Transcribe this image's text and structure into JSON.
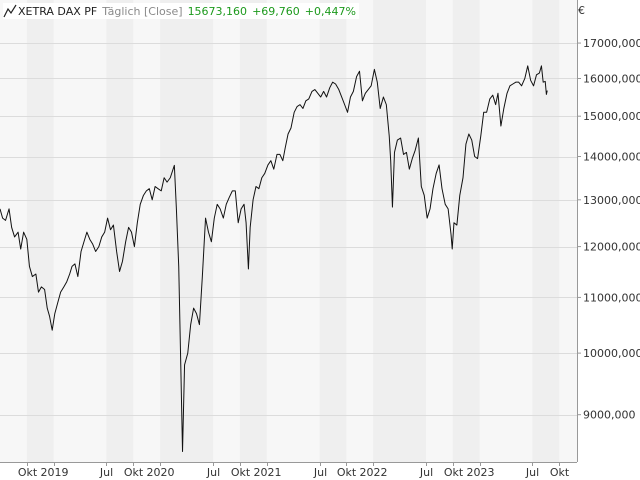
{
  "header": {
    "name": "XETRA DAX PF",
    "mode": "Täglich [Close]",
    "last": "15673,160",
    "change": "+69,760",
    "change_pct": "+0,447%"
  },
  "colors": {
    "positive": "#1d9a1d",
    "line": "#111111",
    "band_dark": "#efefef",
    "band_light": "#f7f7f7",
    "grid": "#dcdcdc"
  },
  "chart_data": {
    "type": "line",
    "currency": "€",
    "yscale": "log",
    "ylim": [
      8300,
      18300
    ],
    "yticks": [
      {
        "v": 9000,
        "label": "9000,000"
      },
      {
        "v": 10000,
        "label": "10000,000"
      },
      {
        "v": 11000,
        "label": "11000,000"
      },
      {
        "v": 12000,
        "label": "12000,000"
      },
      {
        "v": 13000,
        "label": "13000,000"
      },
      {
        "v": 14000,
        "label": "14000,000"
      },
      {
        "v": 15000,
        "label": "15000,000"
      },
      {
        "v": 16000,
        "label": "16000,000"
      },
      {
        "v": 17000,
        "label": "17000,000"
      }
    ],
    "xlim": [
      "2018-07-01",
      "2023-12-01"
    ],
    "xticks": [
      {
        "d": "2018-10-01",
        "label": "Okt"
      },
      {
        "d": "2019-01-01",
        "label": "2019"
      },
      {
        "d": "2019-07-01",
        "label": "Jul"
      },
      {
        "d": "2019-10-01",
        "label": "Okt"
      },
      {
        "d": "2020-01-01",
        "label": "2020"
      },
      {
        "d": "2020-07-01",
        "label": "Jul"
      },
      {
        "d": "2020-10-01",
        "label": "Okt"
      },
      {
        "d": "2021-01-01",
        "label": "2021"
      },
      {
        "d": "2021-07-01",
        "label": "Jul"
      },
      {
        "d": "2021-10-01",
        "label": "Okt"
      },
      {
        "d": "2022-01-01",
        "label": "2022"
      },
      {
        "d": "2022-07-01",
        "label": "Jul"
      },
      {
        "d": "2022-10-01",
        "label": "Okt"
      },
      {
        "d": "2023-01-01",
        "label": "2023"
      },
      {
        "d": "2023-07-01",
        "label": "Jul"
      },
      {
        "d": "2023-10-01",
        "label": "Okt"
      }
    ],
    "series": [
      {
        "points": [
          [
            "2018-07-01",
            12800
          ],
          [
            "2018-07-10",
            12600
          ],
          [
            "2018-07-20",
            12550
          ],
          [
            "2018-08-01",
            12800
          ],
          [
            "2018-08-10",
            12400
          ],
          [
            "2018-08-20",
            12200
          ],
          [
            "2018-09-01",
            12300
          ],
          [
            "2018-09-10",
            11950
          ],
          [
            "2018-09-20",
            12300
          ],
          [
            "2018-10-01",
            12150
          ],
          [
            "2018-10-10",
            11600
          ],
          [
            "2018-10-20",
            11400
          ],
          [
            "2018-11-01",
            11450
          ],
          [
            "2018-11-10",
            11100
          ],
          [
            "2018-11-20",
            11200
          ],
          [
            "2018-12-01",
            11150
          ],
          [
            "2018-12-10",
            10800
          ],
          [
            "2018-12-18",
            10650
          ],
          [
            "2018-12-27",
            10400
          ],
          [
            "2019-01-05",
            10700
          ],
          [
            "2019-01-15",
            10900
          ],
          [
            "2019-01-25",
            11100
          ],
          [
            "2019-02-05",
            11200
          ],
          [
            "2019-02-15",
            11300
          ],
          [
            "2019-02-25",
            11450
          ],
          [
            "2019-03-05",
            11600
          ],
          [
            "2019-03-15",
            11650
          ],
          [
            "2019-03-25",
            11400
          ],
          [
            "2019-04-05",
            11900
          ],
          [
            "2019-04-15",
            12100
          ],
          [
            "2019-04-25",
            12300
          ],
          [
            "2019-05-05",
            12150
          ],
          [
            "2019-05-15",
            12050
          ],
          [
            "2019-05-25",
            11900
          ],
          [
            "2019-06-05",
            12000
          ],
          [
            "2019-06-15",
            12200
          ],
          [
            "2019-06-25",
            12300
          ],
          [
            "2019-07-05",
            12600
          ],
          [
            "2019-07-15",
            12350
          ],
          [
            "2019-07-25",
            12450
          ],
          [
            "2019-08-05",
            11900
          ],
          [
            "2019-08-15",
            11500
          ],
          [
            "2019-08-25",
            11700
          ],
          [
            "2019-09-05",
            12100
          ],
          [
            "2019-09-15",
            12400
          ],
          [
            "2019-09-25",
            12300
          ],
          [
            "2019-10-05",
            12000
          ],
          [
            "2019-10-15",
            12500
          ],
          [
            "2019-10-25",
            12900
          ],
          [
            "2019-11-05",
            13100
          ],
          [
            "2019-11-15",
            13200
          ],
          [
            "2019-11-25",
            13250
          ],
          [
            "2019-12-05",
            13000
          ],
          [
            "2019-12-15",
            13300
          ],
          [
            "2019-12-25",
            13250
          ],
          [
            "2020-01-05",
            13200
          ],
          [
            "2020-01-15",
            13500
          ],
          [
            "2020-01-25",
            13400
          ],
          [
            "2020-02-05",
            13500
          ],
          [
            "2020-02-19",
            13790
          ],
          [
            "2020-02-26",
            12800
          ],
          [
            "2020-03-05",
            11600
          ],
          [
            "2020-03-12",
            9800
          ],
          [
            "2020-03-18",
            8450
          ],
          [
            "2020-03-25",
            9800
          ],
          [
            "2020-04-05",
            10000
          ],
          [
            "2020-04-15",
            10500
          ],
          [
            "2020-04-25",
            10800
          ],
          [
            "2020-05-05",
            10700
          ],
          [
            "2020-05-15",
            10500
          ],
          [
            "2020-05-25",
            11400
          ],
          [
            "2020-06-05",
            12600
          ],
          [
            "2020-06-15",
            12300
          ],
          [
            "2020-06-25",
            12100
          ],
          [
            "2020-07-05",
            12600
          ],
          [
            "2020-07-15",
            12900
          ],
          [
            "2020-07-25",
            12800
          ],
          [
            "2020-08-05",
            12600
          ],
          [
            "2020-08-15",
            12900
          ],
          [
            "2020-08-25",
            13050
          ],
          [
            "2020-09-05",
            13200
          ],
          [
            "2020-09-15",
            13200
          ],
          [
            "2020-09-25",
            12500
          ],
          [
            "2020-10-05",
            12800
          ],
          [
            "2020-10-15",
            12900
          ],
          [
            "2020-10-22",
            12500
          ],
          [
            "2020-10-30",
            11550
          ],
          [
            "2020-11-05",
            12400
          ],
          [
            "2020-11-15",
            13000
          ],
          [
            "2020-11-25",
            13300
          ],
          [
            "2020-12-05",
            13250
          ],
          [
            "2020-12-15",
            13500
          ],
          [
            "2020-12-25",
            13600
          ],
          [
            "2021-01-05",
            13800
          ],
          [
            "2021-01-15",
            13900
          ],
          [
            "2021-01-25",
            13700
          ],
          [
            "2021-02-05",
            14050
          ],
          [
            "2021-02-15",
            14050
          ],
          [
            "2021-02-25",
            13900
          ],
          [
            "2021-03-05",
            14200
          ],
          [
            "2021-03-15",
            14550
          ],
          [
            "2021-03-25",
            14700
          ],
          [
            "2021-04-05",
            15100
          ],
          [
            "2021-04-15",
            15250
          ],
          [
            "2021-04-25",
            15300
          ],
          [
            "2021-05-05",
            15200
          ],
          [
            "2021-05-15",
            15400
          ],
          [
            "2021-05-25",
            15450
          ],
          [
            "2021-06-05",
            15650
          ],
          [
            "2021-06-15",
            15700
          ],
          [
            "2021-06-25",
            15600
          ],
          [
            "2021-07-05",
            15500
          ],
          [
            "2021-07-15",
            15650
          ],
          [
            "2021-07-25",
            15500
          ],
          [
            "2021-08-05",
            15750
          ],
          [
            "2021-08-15",
            15900
          ],
          [
            "2021-08-25",
            15850
          ],
          [
            "2021-09-05",
            15700
          ],
          [
            "2021-09-15",
            15500
          ],
          [
            "2021-09-25",
            15300
          ],
          [
            "2021-10-05",
            15100
          ],
          [
            "2021-10-15",
            15500
          ],
          [
            "2021-10-25",
            15650
          ],
          [
            "2021-11-05",
            16050
          ],
          [
            "2021-11-15",
            16200
          ],
          [
            "2021-11-25",
            15400
          ],
          [
            "2021-12-05",
            15600
          ],
          [
            "2021-12-15",
            15700
          ],
          [
            "2021-12-25",
            15800
          ],
          [
            "2022-01-05",
            16250
          ],
          [
            "2022-01-15",
            15900
          ],
          [
            "2022-01-25",
            15200
          ],
          [
            "2022-02-05",
            15500
          ],
          [
            "2022-02-15",
            15300
          ],
          [
            "2022-02-25",
            14500
          ],
          [
            "2022-03-02",
            13900
          ],
          [
            "2022-03-08",
            12840
          ],
          [
            "2022-03-15",
            14100
          ],
          [
            "2022-03-25",
            14400
          ],
          [
            "2022-04-05",
            14450
          ],
          [
            "2022-04-15",
            14050
          ],
          [
            "2022-04-25",
            14100
          ],
          [
            "2022-05-05",
            13700
          ],
          [
            "2022-05-15",
            13950
          ],
          [
            "2022-05-25",
            14150
          ],
          [
            "2022-06-05",
            14450
          ],
          [
            "2022-06-15",
            13300
          ],
          [
            "2022-06-25",
            13100
          ],
          [
            "2022-07-05",
            12600
          ],
          [
            "2022-07-15",
            12800
          ],
          [
            "2022-07-25",
            13250
          ],
          [
            "2022-08-05",
            13600
          ],
          [
            "2022-08-15",
            13800
          ],
          [
            "2022-08-25",
            13250
          ],
          [
            "2022-09-05",
            12900
          ],
          [
            "2022-09-15",
            12800
          ],
          [
            "2022-09-25",
            12250
          ],
          [
            "2022-09-29",
            11950
          ],
          [
            "2022-10-05",
            12500
          ],
          [
            "2022-10-15",
            12450
          ],
          [
            "2022-10-25",
            13100
          ],
          [
            "2022-11-05",
            13500
          ],
          [
            "2022-11-15",
            14300
          ],
          [
            "2022-11-25",
            14550
          ],
          [
            "2022-12-05",
            14400
          ],
          [
            "2022-12-15",
            14000
          ],
          [
            "2022-12-25",
            13950
          ],
          [
            "2023-01-05",
            14500
          ],
          [
            "2023-01-15",
            15100
          ],
          [
            "2023-01-25",
            15100
          ],
          [
            "2023-02-05",
            15450
          ],
          [
            "2023-02-15",
            15550
          ],
          [
            "2023-02-25",
            15300
          ],
          [
            "2023-03-05",
            15600
          ],
          [
            "2023-03-15",
            14750
          ],
          [
            "2023-03-25",
            15200
          ],
          [
            "2023-04-05",
            15600
          ],
          [
            "2023-04-15",
            15800
          ],
          [
            "2023-04-25",
            15850
          ],
          [
            "2023-05-05",
            15900
          ],
          [
            "2023-05-15",
            15900
          ],
          [
            "2023-05-25",
            15800
          ],
          [
            "2023-06-05",
            16000
          ],
          [
            "2023-06-15",
            16350
          ],
          [
            "2023-06-25",
            15950
          ],
          [
            "2023-07-05",
            15800
          ],
          [
            "2023-07-15",
            16100
          ],
          [
            "2023-07-25",
            16150
          ],
          [
            "2023-08-01",
            16350
          ],
          [
            "2023-08-07",
            15900
          ],
          [
            "2023-08-14",
            15920
          ],
          [
            "2023-08-18",
            15570
          ],
          [
            "2023-08-21",
            15673
          ]
        ]
      }
    ]
  }
}
